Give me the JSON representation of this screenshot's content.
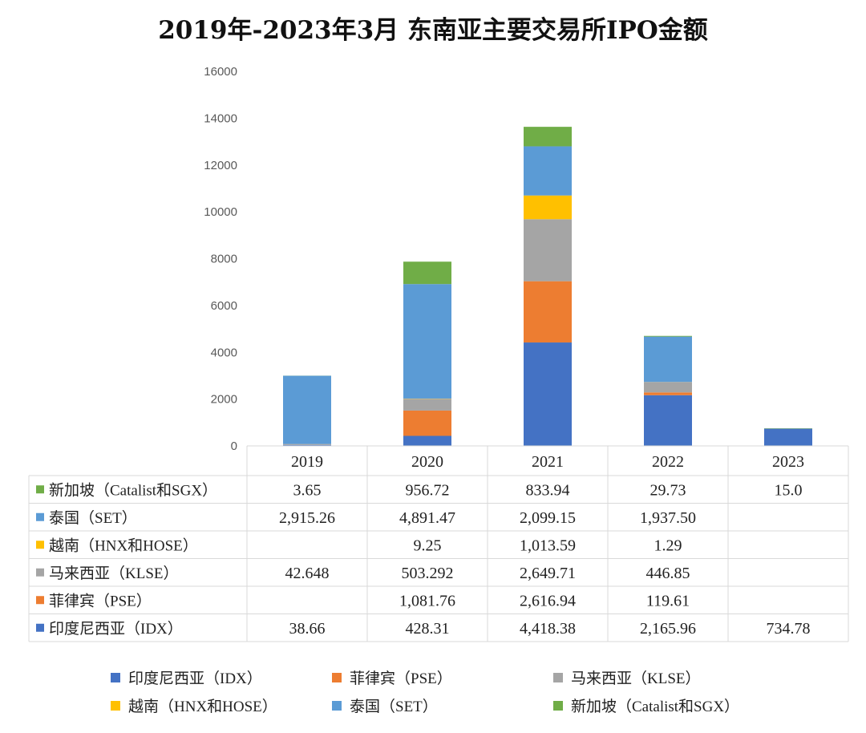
{
  "chart_data": {
    "type": "bar",
    "stacked": true,
    "title": "2019年-2023年3月 东南亚主要交易所IPO金额",
    "categories": [
      "2019",
      "2020",
      "2021",
      "2022",
      "2023"
    ],
    "ylim": [
      0,
      16000
    ],
    "yticks": [
      "0",
      "2000",
      "4000",
      "6000",
      "8000",
      "10000",
      "12000",
      "14000",
      "16000"
    ],
    "series": [
      {
        "name": "印度尼西亚（IDX）",
        "color": "#4472c4",
        "values": [
          38.66,
          428.31,
          4418.38,
          2165.96,
          734.78
        ],
        "labels": [
          "38.66",
          "428.31",
          "4,418.38",
          "2,165.96",
          "734.78"
        ]
      },
      {
        "name": "菲律宾（PSE）",
        "color": "#ed7d31",
        "values": [
          0,
          1081.76,
          2616.94,
          119.61,
          0
        ],
        "labels": [
          "",
          "1,081.76",
          "2,616.94",
          "119.61",
          ""
        ]
      },
      {
        "name": "马来西亚（KLSE）",
        "color": "#a5a5a5",
        "values": [
          42.648,
          503.292,
          2649.71,
          446.85,
          0
        ],
        "labels": [
          "42.648",
          "503.292",
          "2,649.71",
          "446.85",
          ""
        ]
      },
      {
        "name": "越南（HNX和HOSE）",
        "color": "#ffc000",
        "values": [
          0,
          9.25,
          1013.59,
          1.29,
          0
        ],
        "labels": [
          "",
          "9.25",
          "1,013.59",
          "1.29",
          ""
        ]
      },
      {
        "name": "泰国（SET）",
        "color": "#5b9bd5",
        "values": [
          2915.26,
          4891.47,
          2099.15,
          1937.5,
          0
        ],
        "labels": [
          "2,915.26",
          "4,891.47",
          "2,099.15",
          "1,937.50",
          ""
        ]
      },
      {
        "name": "新加坡（Catalist和SGX）",
        "color": "#70ad47",
        "values": [
          3.65,
          956.72,
          833.94,
          29.73,
          15.0
        ],
        "labels": [
          "3.65",
          "956.72",
          "833.94",
          "29.73",
          "15.0"
        ]
      }
    ],
    "legend_position": "bottom",
    "grid": false,
    "data_table": true
  }
}
